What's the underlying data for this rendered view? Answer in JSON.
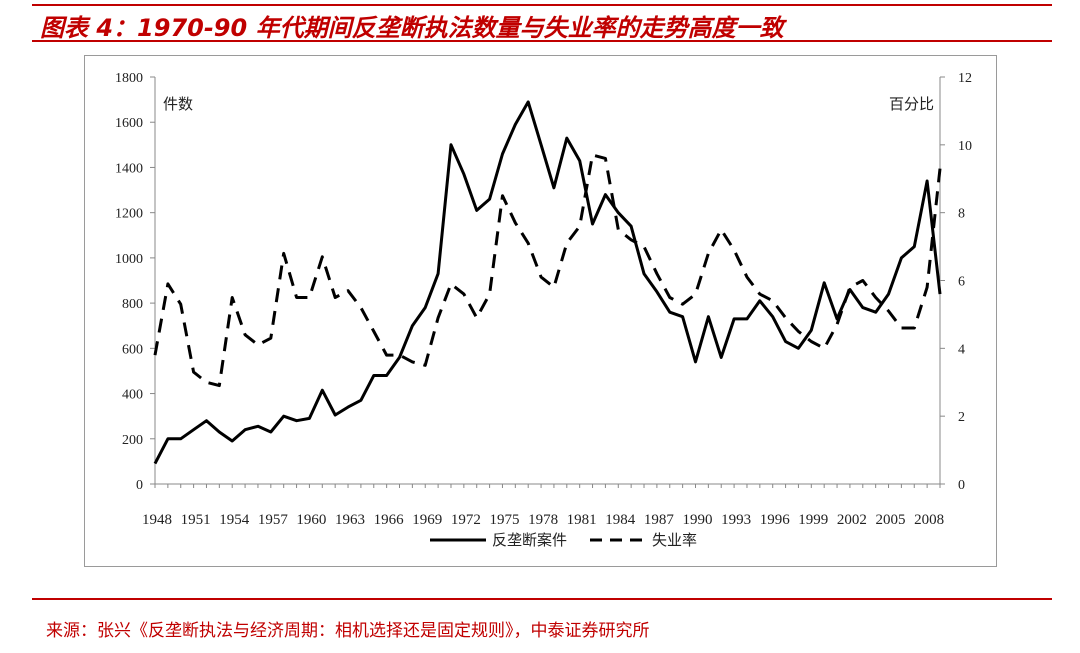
{
  "title": "图表 4：1970-90 年代期间反垄断执法数量与失业率的走势高度一致",
  "source": "来源：张兴《反垄断执法与经济周期：相机选择还是固定规则》，中泰证券研究所",
  "colors": {
    "accent": "#c00000",
    "line": "#000000",
    "axis": "#888888"
  },
  "chart_data": {
    "type": "line",
    "title": "",
    "left_axis_unit": "件数",
    "right_axis_unit": "百分比",
    "ylim_left": [
      0,
      1800
    ],
    "ylim_right": [
      0,
      12
    ],
    "yticks_left": [
      "0",
      "200",
      "400",
      "600",
      "800",
      "1000",
      "1200",
      "1400",
      "1600",
      "1800"
    ],
    "yticks_right": [
      "0",
      "2",
      "4",
      "6",
      "8",
      "10",
      "12"
    ],
    "xlim": [
      1948,
      2009
    ],
    "xticks": [
      "1948",
      "1951",
      "1954",
      "1957",
      "1960",
      "1963",
      "1966",
      "1969",
      "1972",
      "1975",
      "1978",
      "1981",
      "1984",
      "1987",
      "1990",
      "1993",
      "1996",
      "1999",
      "2002",
      "2005",
      "2008"
    ],
    "series": [
      {
        "name": "反垄断案件",
        "axis": "left",
        "style": "solid",
        "x": [
          1948,
          1949,
          1950,
          1951,
          1952,
          1953,
          1954,
          1955,
          1956,
          1957,
          1958,
          1959,
          1960,
          1961,
          1962,
          1963,
          1964,
          1965,
          1966,
          1967,
          1968,
          1969,
          1970,
          1971,
          1972,
          1973,
          1974,
          1975,
          1976,
          1977,
          1978,
          1979,
          1980,
          1981,
          1982,
          1983,
          1984,
          1985,
          1986,
          1987,
          1988,
          1989,
          1990,
          1991,
          1992,
          1993,
          1994,
          1995,
          1996,
          1997,
          1998,
          1999,
          2000,
          2001,
          2002,
          2003,
          2004,
          2005,
          2006,
          2007,
          2008,
          2009
        ],
        "values": [
          90,
          200,
          200,
          240,
          280,
          230,
          190,
          240,
          255,
          230,
          300,
          280,
          290,
          415,
          305,
          340,
          370,
          480,
          480,
          560,
          700,
          780,
          930,
          1500,
          1370,
          1210,
          1260,
          1460,
          1590,
          1690,
          1500,
          1310,
          1530,
          1430,
          1150,
          1280,
          1200,
          1140,
          930,
          850,
          760,
          740,
          540,
          740,
          560,
          730,
          730,
          810,
          740,
          630,
          600,
          680,
          890,
          730,
          860,
          780,
          760,
          840,
          1000,
          1050,
          1340,
          840
        ]
      },
      {
        "name": "失业率",
        "axis": "right",
        "style": "dashed",
        "x": [
          1948,
          1949,
          1950,
          1951,
          1952,
          1953,
          1954,
          1955,
          1956,
          1957,
          1958,
          1959,
          1960,
          1961,
          1962,
          1963,
          1964,
          1965,
          1966,
          1967,
          1968,
          1969,
          1970,
          1971,
          1972,
          1973,
          1974,
          1975,
          1976,
          1977,
          1978,
          1979,
          1980,
          1981,
          1982,
          1983,
          1984,
          1985,
          1986,
          1987,
          1988,
          1989,
          1990,
          1991,
          1992,
          1993,
          1994,
          1995,
          1996,
          1997,
          1998,
          1999,
          2000,
          2001,
          2002,
          2003,
          2004,
          2005,
          2006,
          2007,
          2008,
          2009
        ],
        "values": [
          3.8,
          5.9,
          5.3,
          3.3,
          3.0,
          2.9,
          5.5,
          4.4,
          4.1,
          4.3,
          6.8,
          5.5,
          5.5,
          6.7,
          5.5,
          5.7,
          5.2,
          4.5,
          3.8,
          3.8,
          3.6,
          3.5,
          4.9,
          5.9,
          5.6,
          4.9,
          5.6,
          8.5,
          7.7,
          7.1,
          6.1,
          5.8,
          7.1,
          7.6,
          9.7,
          9.6,
          7.5,
          7.2,
          7.0,
          6.2,
          5.5,
          5.3,
          5.6,
          6.8,
          7.5,
          6.9,
          6.1,
          5.6,
          5.4,
          4.9,
          4.5,
          4.2,
          4.0,
          4.7,
          5.8,
          6.0,
          5.5,
          5.1,
          4.6,
          4.6,
          5.8,
          9.3
        ]
      }
    ]
  }
}
